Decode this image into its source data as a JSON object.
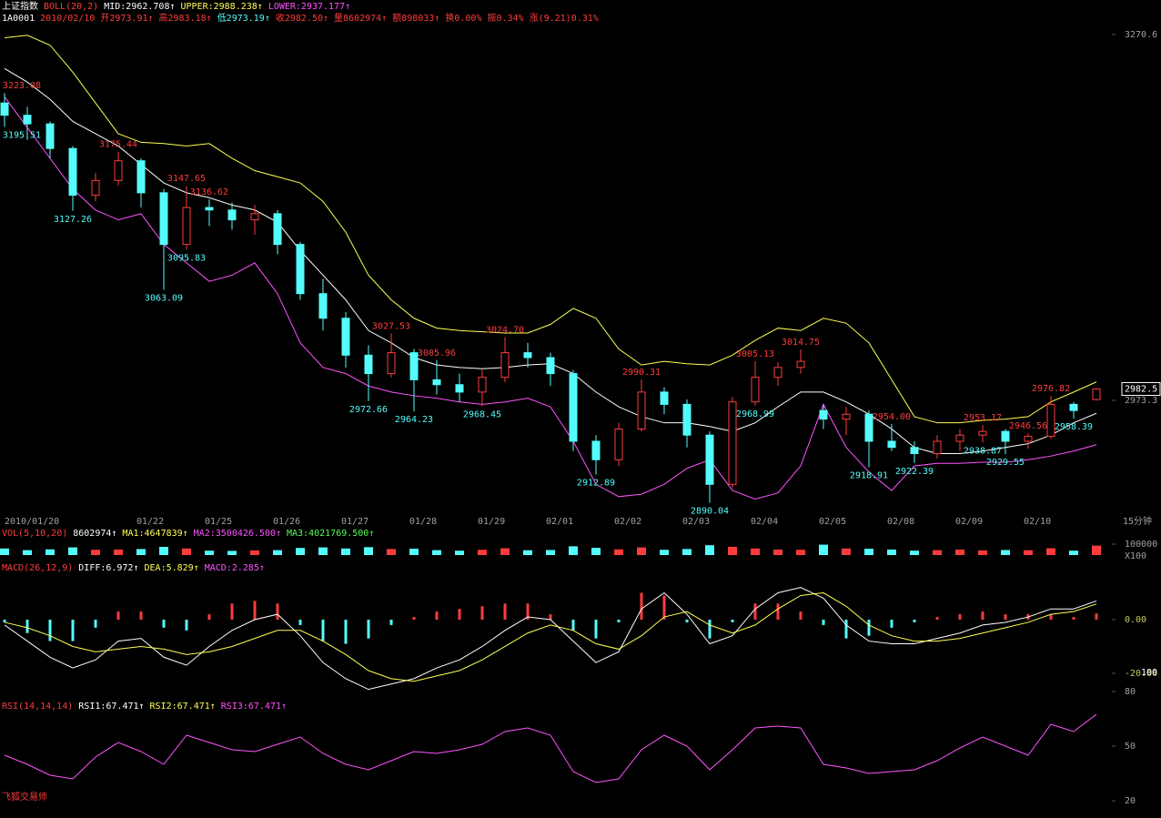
{
  "header": {
    "rows": [
      [
        {
          "text": "上证指数",
          "color": "#ffffff"
        },
        {
          "text": "BOLL(20,2)",
          "color": "#ff3c3c"
        },
        {
          "text": "MID:2962.708↑",
          "color": "#ffffff"
        },
        {
          "text": "UPPER:2988.238↑",
          "color": "#ffff54"
        },
        {
          "text": "LOWER:2937.177↑",
          "color": "#ff54ff"
        }
      ],
      [
        {
          "text": "1A0001",
          "color": "#ffffff"
        },
        {
          "text": "2010/02/10",
          "color": "#ff3c3c"
        },
        {
          "text": "开2973.91↑",
          "color": "#ff3c3c"
        },
        {
          "text": "高2983.18↑",
          "color": "#ff3c3c"
        },
        {
          "text": "低2973.19↑",
          "color": "#54fcfc"
        },
        {
          "text": "收2982.50↑",
          "color": "#ff3c3c"
        },
        {
          "text": "量8602974↑",
          "color": "#ff3c3c"
        },
        {
          "text": "额898033↑",
          "color": "#ff3c3c"
        },
        {
          "text": "换0.00%",
          "color": "#ff3c3c"
        },
        {
          "text": "振0.34%",
          "color": "#ff3c3c"
        },
        {
          "text": "涨(9.21)0.31%",
          "color": "#ff3c3c"
        }
      ]
    ]
  },
  "chart_data": [
    {
      "type": "candlestick",
      "up_color": "#ff3c3c",
      "down_color": "#54fcfc",
      "period_label": "15分钟",
      "categories": [
        "2010/01/20",
        null,
        null,
        null,
        null,
        null,
        "01/22",
        null,
        null,
        "01/25",
        null,
        null,
        "01/26",
        null,
        null,
        "01/27",
        null,
        null,
        "01/28",
        null,
        null,
        "01/29",
        null,
        null,
        "02/01",
        null,
        null,
        "02/02",
        null,
        null,
        "02/03",
        null,
        null,
        "02/04",
        null,
        null,
        "02/05",
        null,
        null,
        "02/08",
        null,
        null,
        "02/09",
        null,
        null,
        "02/10",
        null,
        null,
        null
      ],
      "open": [
        3215,
        3205,
        3198,
        3178,
        3140,
        3152,
        3168,
        3142,
        3100,
        3130,
        3128,
        3120,
        3125,
        3100,
        3060,
        3040,
        3010,
        2995,
        3012,
        2990,
        2986,
        2980,
        2992,
        3012,
        3008,
        2995,
        2940,
        2925,
        2950,
        2980,
        2970,
        2945,
        2905,
        2972,
        2992,
        3000,
        2965,
        2958,
        2962,
        2940,
        2935,
        2930,
        2940,
        2945,
        2948,
        2940,
        2944,
        2970,
        2973.91
      ],
      "high": [
        3223.08,
        3212,
        3200,
        3180,
        3158,
        3175.44,
        3170,
        3145,
        3147.65,
        3136.62,
        3134,
        3132,
        3128,
        3102,
        3072,
        3045,
        3018,
        3027.53,
        3015,
        3005.96,
        2995,
        2998,
        3024.7,
        3020,
        3012,
        2998,
        2945,
        2955,
        2990.31,
        2984,
        2974,
        2948,
        2976,
        3005.13,
        3004,
        3014.75,
        2970,
        2968,
        2965,
        2954,
        2940,
        2945,
        2950,
        2953.17,
        2950,
        2946.56,
        2976.82,
        2972,
        2983.18
      ],
      "low": [
        3195.51,
        3185,
        3170,
        3127.26,
        3135,
        3148,
        3130,
        3063.09,
        3095.83,
        3115,
        3112,
        3108,
        3092,
        3055,
        3030,
        3000,
        2972.66,
        2992,
        2964.23,
        2978,
        2972,
        2968.45,
        2988,
        3000,
        2985,
        2932,
        2912.89,
        2920,
        2948,
        2962,
        2935,
        2890.04,
        2902,
        2968.99,
        2985,
        2995,
        2950,
        2945,
        2918.91,
        2932,
        2922.39,
        2926,
        2932,
        2938.87,
        2929.55,
        2934,
        2942,
        2958.39,
        2973.19
      ],
      "close": [
        3205,
        3198,
        3178,
        3140,
        3152,
        3168,
        3142,
        3100,
        3130,
        3128,
        3120,
        3125,
        3100,
        3060,
        3040,
        3010,
        2995,
        3012,
        2990,
        2986,
        2980,
        2992,
        3012,
        3008,
        2995,
        2940,
        2925,
        2950,
        2980,
        2970,
        2945,
        2905,
        2972,
        2992,
        3000,
        3005,
        2958,
        2962,
        2940,
        2935,
        2930,
        2940,
        2945,
        2948,
        2940,
        2944,
        2970,
        2965,
        2982.5
      ],
      "series": [
        {
          "color": "#ffff54",
          "values": [
            3268,
            3270,
            3262,
            3240,
            3215,
            3190,
            3183,
            3182,
            3180,
            3182,
            3170,
            3160,
            3155,
            3150,
            3135,
            3110,
            3075,
            3055,
            3040,
            3032,
            3030,
            3029,
            3028,
            3028,
            3035,
            3048,
            3040,
            3015,
            3002,
            3005,
            3003,
            3002,
            3010,
            3022,
            3032,
            3030,
            3040,
            3036,
            3020,
            2990,
            2960,
            2955,
            2955,
            2957,
            2958,
            2960,
            2972,
            2980,
            2988.238
          ]
        },
        {
          "color": "#ffffff",
          "values": [
            3243,
            3232,
            3218,
            3200,
            3190,
            3180,
            3165,
            3150,
            3142,
            3138,
            3132,
            3128,
            3118,
            3095,
            3075,
            3055,
            3030,
            3020,
            3008,
            3002,
            3000,
            2999,
            3000,
            3002,
            3003,
            2995,
            2980,
            2968,
            2960,
            2955,
            2955,
            2952,
            2948,
            2955,
            2968,
            2980,
            2980,
            2972,
            2962,
            2950,
            2935,
            2930,
            2930,
            2932,
            2935,
            2938,
            2945,
            2955,
            2962.708
          ]
        },
        {
          "color": "#ff54ff",
          "values": [
            3220,
            3195,
            3170,
            3145,
            3128,
            3120,
            3125,
            3100,
            3085,
            3070,
            3075,
            3085,
            3060,
            3020,
            3000,
            2995,
            2985,
            2980,
            2977,
            2975,
            2972,
            2970,
            2972,
            2975,
            2968,
            2940,
            2905,
            2895,
            2897,
            2905,
            2918,
            2925,
            2900,
            2893,
            2898,
            2920,
            2970,
            2935,
            2915,
            2900,
            2920,
            2922,
            2922,
            2923,
            2923,
            2925,
            2928,
            2932,
            2937.177
          ]
        }
      ],
      "annotations": [
        {
          "value": 3223.08,
          "label": "3223.08"
        },
        {
          "value": 3195.51,
          "label": "3195.51"
        },
        {
          "value": 3175.44,
          "label": "3175.44"
        },
        {
          "value": 3127.26,
          "label": "3127.26"
        },
        {
          "value": 3147.65,
          "label": "3147.65"
        },
        {
          "value": 3136.62,
          "label": "3136.62"
        },
        {
          "value": 3095.83,
          "label": "3095.83"
        },
        {
          "value": 3063.09,
          "label": "3063.09"
        },
        {
          "value": 3027.53,
          "label": "3027.53"
        },
        {
          "value": 2972.66,
          "label": "2972.66"
        },
        {
          "value": 3005.96,
          "label": "3005.96"
        },
        {
          "value": 2964.23,
          "label": "2964.23"
        },
        {
          "value": 3024.7,
          "label": "3024.70"
        },
        {
          "value": 2968.45,
          "label": "2968.45"
        },
        {
          "value": 2990.31,
          "label": "2990.31"
        },
        {
          "value": 2912.89,
          "label": "2912.89"
        },
        {
          "value": 2890.04,
          "label": "2890.04"
        },
        {
          "value": 3005.13,
          "label": "3005.13"
        },
        {
          "value": 2968.99,
          "label": "2968.99"
        },
        {
          "value": 3014.75,
          "label": "3014.75"
        },
        {
          "value": 2954,
          "label": "2954.00"
        },
        {
          "value": 2918.91,
          "label": "2918.91"
        },
        {
          "value": 2922.39,
          "label": "2922.39"
        },
        {
          "value": 2953.17,
          "label": "2953.17"
        },
        {
          "value": 2938.87,
          "label": "2938.87"
        },
        {
          "value": 2946.56,
          "label": "2946.56"
        },
        {
          "value": 2929.55,
          "label": "2929.55"
        },
        {
          "value": 2976.82,
          "label": "2976.82"
        },
        {
          "value": 2958.39,
          "label": "2958.39"
        }
      ],
      "ylim": [
        2880.8,
        3291.3
      ],
      "yticks": [
        3270.6,
        2973.3
      ],
      "last_price": 2982.5
    },
    {
      "type": "bar",
      "legend_items": [
        {
          "text": "VOL(5,10,20)",
          "color": "#ff3c3c"
        },
        {
          "text": "8602974↑",
          "color": "#ffffff"
        },
        {
          "text": "MA1:4647839↑",
          "color": "#ffff54"
        },
        {
          "text": "MA2:3500426.500↑",
          "color": "#ff54ff"
        },
        {
          "text": "MA3:4021769.500↑",
          "color": "#54ff54"
        }
      ],
      "values": [
        60000,
        45000,
        52000,
        70000,
        48000,
        50000,
        55000,
        75000,
        60000,
        40000,
        38000,
        42000,
        45000,
        65000,
        70000,
        60000,
        72000,
        55000,
        58000,
        45000,
        40000,
        48000,
        62000,
        44000,
        46000,
        80000,
        66000,
        52000,
        70000,
        48000,
        55000,
        90000,
        75000,
        60000,
        50000,
        48000,
        95000,
        60000,
        58000,
        50000,
        40000,
        45000,
        50000,
        42000,
        46000,
        44000,
        62000,
        40000,
        86029.74
      ],
      "ylim": [
        0,
        100000
      ],
      "yticks": [
        100000
      ],
      "unit_label": "X100"
    },
    {
      "type": "macd",
      "legend_items": [
        {
          "text": "MACD(26,12,9)",
          "color": "#ff3c3c"
        },
        {
          "text": "DIFF:6.972↑",
          "color": "#ffffff"
        },
        {
          "text": "DEA:5.829↑",
          "color": "#ffff54"
        },
        {
          "text": "MACD:2.285↑",
          "color": "#ff54ff"
        }
      ],
      "series": [
        {
          "color": "#ffffff",
          "values": [
            -2,
            -8,
            -14,
            -18,
            -15,
            -8,
            -7,
            -14,
            -17,
            -10,
            -4,
            0,
            2,
            -6,
            -16,
            -22,
            -26,
            -24,
            -22,
            -18,
            -15,
            -10,
            -4,
            1,
            0,
            -8,
            -16,
            -12,
            4,
            10,
            2,
            -9,
            -6,
            4,
            10,
            12,
            8,
            -2,
            -8,
            -9,
            -9,
            -7,
            -5,
            -2,
            -1,
            1,
            4,
            4,
            6.972
          ]
        },
        {
          "color": "#ffff54",
          "values": [
            -1,
            -3,
            -6,
            -10,
            -12,
            -11,
            -10,
            -11,
            -13,
            -12,
            -10,
            -7,
            -4,
            -4,
            -8,
            -13,
            -19,
            -22,
            -23,
            -21,
            -19,
            -15,
            -10,
            -5,
            -2,
            -4,
            -9,
            -11,
            -6,
            1,
            3,
            -2,
            -5,
            -2,
            4,
            9,
            10,
            5,
            -2,
            -6,
            -8,
            -8,
            -7,
            -5,
            -3,
            -1,
            2,
            3,
            5.829
          ]
        }
      ],
      "histogram": [
        -1,
        -5,
        -8,
        -8,
        -3,
        3,
        3,
        -3,
        -4,
        2,
        6,
        7,
        6,
        -2,
        -8,
        -9,
        -7,
        -2,
        1,
        3,
        4,
        5,
        6,
        6,
        2,
        -4,
        -7,
        -1,
        10,
        9,
        -1,
        -7,
        -1,
        6,
        6,
        3,
        -2,
        -7,
        -6,
        -3,
        -1,
        1,
        2,
        3,
        2,
        2,
        2,
        1,
        2.285
      ],
      "ylim": [
        -26.8,
        17.3
      ],
      "yticks": [
        {
          "value": 0,
          "label": "0.00"
        },
        {
          "value": -20,
          "label": "-20.00"
        }
      ],
      "scale_label": "100"
    },
    {
      "type": "line",
      "legend_items": [
        {
          "text": "RSI(14,14,14)",
          "color": "#ff3c3c"
        },
        {
          "text": "RSI1:67.471↑",
          "color": "#ffffff"
        },
        {
          "text": "RSI2:67.471↑",
          "color": "#ffff54"
        },
        {
          "text": "RSI3:67.471↑",
          "color": "#ff54ff"
        }
      ],
      "series": [
        {
          "color": "#ff54ff",
          "values": [
            45,
            40,
            34,
            32,
            44,
            52,
            47,
            40,
            56,
            52,
            48,
            47,
            51,
            55,
            46,
            40,
            37,
            42,
            47,
            46,
            48,
            51,
            58,
            60,
            56,
            36,
            30,
            32,
            48,
            56,
            50,
            37,
            48,
            60,
            61,
            60,
            40,
            38,
            35,
            36,
            37,
            42,
            49,
            55,
            50,
            45,
            62,
            58,
            67.471
          ]
        }
      ],
      "ylim": [
        12,
        84
      ],
      "yticks": [
        80,
        50,
        20
      ]
    }
  ],
  "footer": "飞狐交易师"
}
